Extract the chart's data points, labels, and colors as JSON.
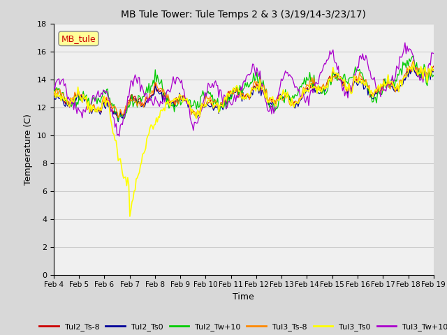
{
  "title": "MB Tule Tower: Tule Temps 2 & 3 (3/19/14-3/23/17)",
  "xlabel": "Time",
  "ylabel": "Temperature (C)",
  "ylim": [
    0,
    18
  ],
  "xlim_days": [
    0,
    15
  ],
  "x_tick_labels": [
    "Feb 4",
    "Feb 5",
    "Feb 6",
    "Feb 7",
    "Feb 8",
    "Feb 9",
    "Feb 10",
    "Feb 11",
    "Feb 12",
    "Feb 13",
    "Feb 14",
    "Feb 15",
    "Feb 16",
    "Feb 17",
    "Feb 18",
    "Feb 19"
  ],
  "annotation_text": "MB_tule",
  "series_colors": {
    "Tul2_Ts-8": "#cc0000",
    "Tul2_Ts0": "#000099",
    "Tul2_Tw+10": "#00cc00",
    "Tul3_Ts-8": "#ff8800",
    "Tul3_Ts0": "#ffff00",
    "Tul3_Tw+10": "#aa00cc"
  },
  "grid_color": "#cccccc",
  "bg_color": "#d8d8d8",
  "plot_bg_color": "#f0f0f0"
}
